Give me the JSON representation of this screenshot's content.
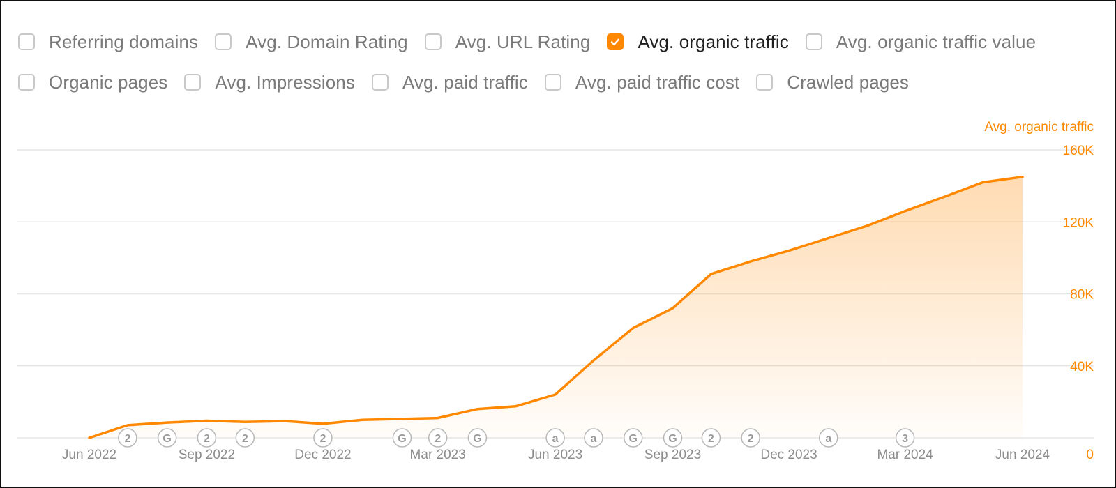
{
  "metrics": {
    "row1": [
      {
        "label": "Referring domains",
        "checked": false
      },
      {
        "label": "Avg. Domain Rating",
        "checked": false
      },
      {
        "label": "Avg. URL Rating",
        "checked": false
      },
      {
        "label": "Avg. organic traffic",
        "checked": true
      },
      {
        "label": "Avg. organic traffic value",
        "checked": false
      }
    ],
    "row2": [
      {
        "label": "Organic pages",
        "checked": false
      },
      {
        "label": "Avg. Impressions",
        "checked": false
      },
      {
        "label": "Avg. paid traffic",
        "checked": false
      },
      {
        "label": "Avg. paid traffic cost",
        "checked": false
      },
      {
        "label": "Crawled pages",
        "checked": false
      }
    ]
  },
  "colors": {
    "accent": "#ff8800",
    "grid": "#e6e6e6",
    "tick_text": "#8c8c8c",
    "marker": "#9a9a9a"
  },
  "chart_data": {
    "type": "area",
    "ylabel": "Avg. organic traffic",
    "y_axis_position": "right",
    "ylim": [
      0,
      160000
    ],
    "yticks": [
      0,
      40000,
      80000,
      120000,
      160000
    ],
    "ytick_labels": [
      "0",
      "40K",
      "80K",
      "120K",
      "160K"
    ],
    "xlim": [
      "2022-06-01",
      "2024-06-01"
    ],
    "xticks": [
      "2022-06-01",
      "2022-09-01",
      "2022-12-01",
      "2023-03-01",
      "2023-06-01",
      "2023-09-01",
      "2023-12-01",
      "2024-03-01",
      "2024-06-01"
    ],
    "xtick_labels": [
      "Jun 2022",
      "Sep 2022",
      "Dec 2022",
      "Mar 2023",
      "Jun 2023",
      "Sep 2023",
      "Dec 2023",
      "Mar 2024",
      "Jun 2024"
    ],
    "grid": true,
    "series": [
      {
        "name": "Avg. organic traffic",
        "x": [
          "2022-06-01",
          "2022-07-01",
          "2022-08-01",
          "2022-09-01",
          "2022-10-01",
          "2022-11-01",
          "2022-12-01",
          "2023-01-01",
          "2023-02-01",
          "2023-03-01",
          "2023-04-01",
          "2023-05-01",
          "2023-06-01",
          "2023-07-01",
          "2023-08-01",
          "2023-09-01",
          "2023-10-01",
          "2023-11-01",
          "2023-12-01",
          "2024-01-01",
          "2024-02-01",
          "2024-03-01",
          "2024-04-01",
          "2024-05-01",
          "2024-06-01"
        ],
        "y": [
          0,
          7000,
          8500,
          9500,
          8800,
          9300,
          7800,
          10000,
          10500,
          11000,
          16000,
          17500,
          24000,
          43000,
          61000,
          72000,
          91000,
          98000,
          104000,
          111000,
          118000,
          126000,
          134000,
          142000,
          145000
        ]
      }
    ],
    "event_markers": [
      {
        "date": "2022-07-01",
        "label": "2"
      },
      {
        "date": "2022-08-01",
        "label": "G"
      },
      {
        "date": "2022-09-01",
        "label": "2"
      },
      {
        "date": "2022-10-01",
        "label": "2"
      },
      {
        "date": "2022-12-01",
        "label": "2"
      },
      {
        "date": "2023-02-01",
        "label": "G"
      },
      {
        "date": "2023-03-01",
        "label": "2"
      },
      {
        "date": "2023-04-01",
        "label": "G"
      },
      {
        "date": "2023-06-01",
        "label": "a"
      },
      {
        "date": "2023-07-01",
        "label": "a"
      },
      {
        "date": "2023-08-01",
        "label": "G"
      },
      {
        "date": "2023-09-01",
        "label": "G"
      },
      {
        "date": "2023-10-01",
        "label": "2"
      },
      {
        "date": "2023-11-01",
        "label": "2"
      },
      {
        "date": "2024-01-01",
        "label": "a"
      },
      {
        "date": "2024-03-01",
        "label": "3"
      }
    ]
  }
}
